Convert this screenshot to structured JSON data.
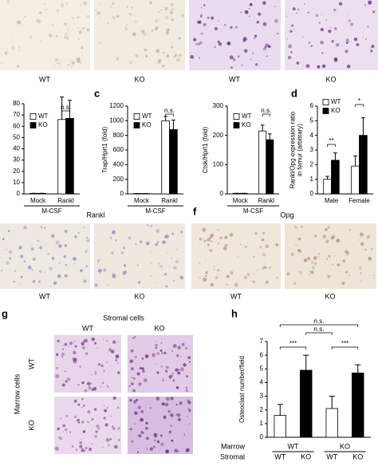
{
  "figure": {
    "letters": [
      "c",
      "d",
      "f",
      "g",
      "h"
    ],
    "image_labels": [
      "WT",
      "KO",
      "WT",
      "KO",
      "WT",
      "KO",
      "WT",
      "KO"
    ],
    "e_title": "Rankl",
    "f_title": "Opg",
    "g": {
      "title": "Stromal cells",
      "columns": [
        "WT",
        "KO"
      ],
      "row_title": "Marrow cells",
      "rows": [
        "WT",
        "KO"
      ]
    }
  },
  "chart_data": [
    {
      "type": "bar",
      "categories": [
        "Mock",
        "Rankl"
      ],
      "xlabel": "M-CSF",
      "series": [
        {
          "name": "WT",
          "color": "#ffffff",
          "values": [
            0.5,
            66
          ],
          "errors": [
            0,
            20
          ]
        },
        {
          "name": "KO",
          "color": "#000000",
          "values": [
            0.5,
            67
          ],
          "errors": [
            0,
            16
          ]
        }
      ],
      "ylim": [
        0,
        80
      ],
      "yticks": [
        0,
        10,
        20,
        30,
        40,
        50,
        60,
        70,
        80
      ],
      "annotations": [
        "n.s."
      ]
    },
    {
      "type": "bar",
      "categories": [
        "Mock",
        "Rankl"
      ],
      "xlabel": "M-CSF",
      "ylabel": [
        "Trap/Hprt1 (fold)"
      ],
      "series": [
        {
          "name": "WT",
          "color": "#ffffff",
          "values": [
            5,
            1000
          ],
          "errors": [
            0,
            60
          ]
        },
        {
          "name": "KO",
          "color": "#000000",
          "values": [
            5,
            880
          ],
          "errors": [
            0,
            130
          ]
        }
      ],
      "ylim": [
        0,
        1200
      ],
      "yticks": [
        0,
        200,
        400,
        600,
        800,
        1000,
        1200
      ],
      "annotations": [
        "n.s."
      ]
    },
    {
      "type": "bar",
      "categories": [
        "Mock",
        "Rankl"
      ],
      "xlabel": "M-CSF",
      "ylabel": [
        "Ctsk/Hprt1 (fold)"
      ],
      "series": [
        {
          "name": "WT",
          "color": "#ffffff",
          "values": [
            2,
            215
          ],
          "errors": [
            0,
            20
          ]
        },
        {
          "name": "KO",
          "color": "#000000",
          "values": [
            2,
            185
          ],
          "errors": [
            0,
            20
          ]
        }
      ],
      "ylim": [
        0,
        300
      ],
      "yticks": [
        0,
        100,
        200,
        300
      ],
      "annotations": [
        "n.s."
      ]
    },
    {
      "type": "bar",
      "categories": [
        "Male",
        "Female"
      ],
      "ylabel": [
        "Rankl/Opg expression ratio",
        "in femur (arbitrary)"
      ],
      "series": [
        {
          "name": "WT",
          "color": "#ffffff",
          "values": [
            1.0,
            1.9
          ],
          "errors": [
            0.2,
            0.7
          ]
        },
        {
          "name": "KO",
          "color": "#000000",
          "values": [
            2.3,
            4.0
          ],
          "errors": [
            0.5,
            1.2
          ]
        }
      ],
      "ylim": [
        0,
        6
      ],
      "yticks": [
        0,
        1,
        2,
        3,
        4,
        5,
        6
      ],
      "annotations": [
        "**",
        "*"
      ]
    },
    {
      "type": "bar",
      "ylabel": [
        "Osteoclast number/field"
      ],
      "values": [
        1.6,
        4.9,
        2.1,
        4.7
      ],
      "errors": [
        0.8,
        1.1,
        0.9,
        0.6
      ],
      "colors": [
        "#ffffff",
        "#000000",
        "#ffffff",
        "#000000"
      ],
      "rows": [
        {
          "name": "Marrow",
          "labels": [
            "WT",
            "KO"
          ]
        },
        {
          "name": "Stromal",
          "labels": [
            "WT",
            "KO",
            "WT",
            "KO"
          ]
        }
      ],
      "ylim": [
        0,
        7
      ],
      "yticks": [
        0,
        1,
        2,
        3,
        4,
        5,
        6,
        7
      ],
      "annotations": [
        "n.s.",
        "n.s.",
        "***",
        "***"
      ]
    }
  ]
}
